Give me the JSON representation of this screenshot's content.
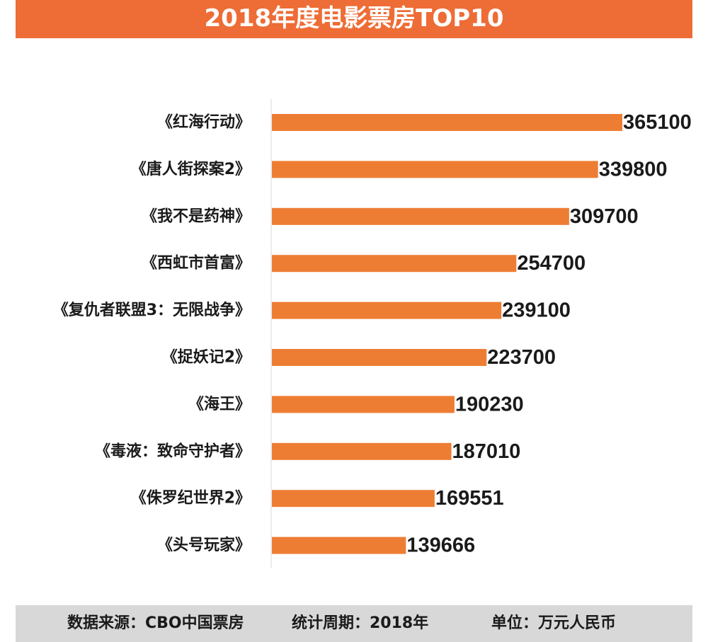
{
  "header": {
    "title": "2018年度电影票房TOP10"
  },
  "colors": {
    "bar": "#ee7d34",
    "title_bg": "#ee6c36",
    "footer_bg": "#d8d8d8",
    "text": "#1a1a1a",
    "axis": "#d9d9d9"
  },
  "chart_data": {
    "type": "bar",
    "orientation": "horizontal",
    "title": "2018年度电影票房TOP10",
    "xlabel": "",
    "ylabel": "",
    "xlim": [
      0,
      365100
    ],
    "grid": false,
    "categories": [
      "《红海行动》",
      "《唐人街探案2》",
      "《我不是药神》",
      "《西虹市首富》",
      "《复仇者联盟3：无限战争》",
      "《捉妖记2》",
      "《海王》",
      "《毒液：致命守护者》",
      "《侏罗纪世界2》",
      "《头号玩家》"
    ],
    "values": [
      365100,
      339800,
      309700,
      254700,
      239100,
      223700,
      190230,
      187010,
      169551,
      139666
    ],
    "data_labels": [
      "365100",
      "339800",
      "309700",
      "254700",
      "239100",
      "223700",
      "190230",
      "187010",
      "169551",
      "139666"
    ]
  },
  "footer": {
    "source": "数据来源：CBO中国票房",
    "period": "统计周期：2018年",
    "unit": "单位：万元人民币"
  }
}
